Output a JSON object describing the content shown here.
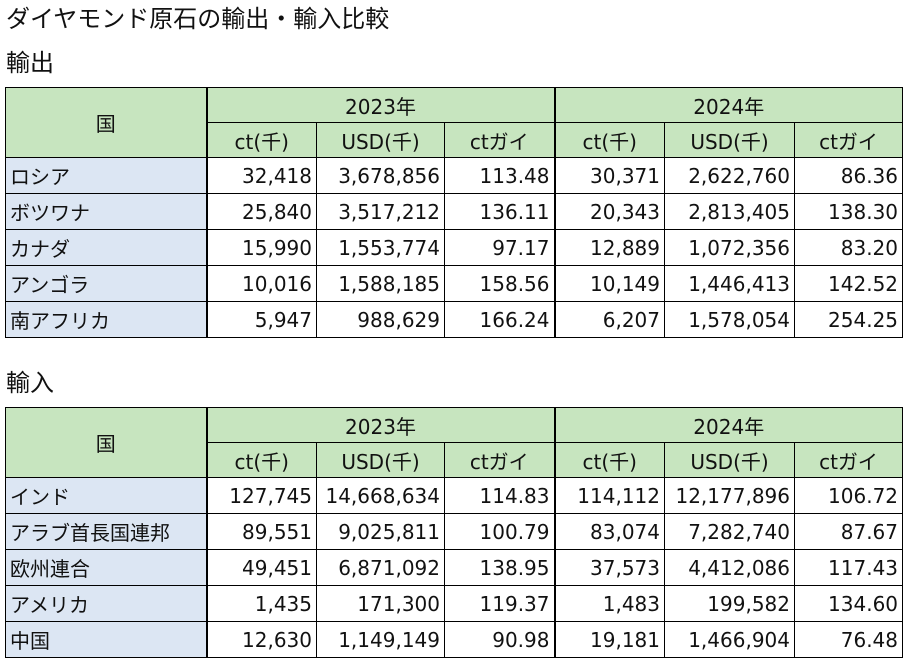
{
  "title": "ダイヤモンド原石の輸出・輸入比較",
  "header": {
    "country_label": "国",
    "years": [
      "2023年",
      "2024年"
    ],
    "columns": [
      "ct(千)",
      "USD(千)",
      "ctガイ"
    ]
  },
  "exports": {
    "label": "輸出",
    "rows": [
      {
        "country": "ロシア",
        "ct_2023": "32,418",
        "usd_2023": "3,678,856",
        "ctg_2023": "113.48",
        "ct_2024": "30,371",
        "usd_2024": "2,622,760",
        "ctg_2024": "86.36"
      },
      {
        "country": "ボツワナ",
        "ct_2023": "25,840",
        "usd_2023": "3,517,212",
        "ctg_2023": "136.11",
        "ct_2024": "20,343",
        "usd_2024": "2,813,405",
        "ctg_2024": "138.30"
      },
      {
        "country": "カナダ",
        "ct_2023": "15,990",
        "usd_2023": "1,553,774",
        "ctg_2023": "97.17",
        "ct_2024": "12,889",
        "usd_2024": "1,072,356",
        "ctg_2024": "83.20"
      },
      {
        "country": "アンゴラ",
        "ct_2023": "10,016",
        "usd_2023": "1,588,185",
        "ctg_2023": "158.56",
        "ct_2024": "10,149",
        "usd_2024": "1,446,413",
        "ctg_2024": "142.52"
      },
      {
        "country": "南アフリカ",
        "ct_2023": "5,947",
        "usd_2023": "988,629",
        "ctg_2023": "166.24",
        "ct_2024": "6,207",
        "usd_2024": "1,578,054",
        "ctg_2024": "254.25"
      }
    ]
  },
  "imports": {
    "label": "輸入",
    "rows": [
      {
        "country": "インド",
        "ct_2023": "127,745",
        "usd_2023": "14,668,634",
        "ctg_2023": "114.83",
        "ct_2024": "114,112",
        "usd_2024": "12,177,896",
        "ctg_2024": "106.72"
      },
      {
        "country": "アラブ首長国連邦",
        "ct_2023": "89,551",
        "usd_2023": "9,025,811",
        "ctg_2023": "100.79",
        "ct_2024": "83,074",
        "usd_2024": "7,282,740",
        "ctg_2024": "87.67"
      },
      {
        "country": "欧州連合",
        "ct_2023": "49,451",
        "usd_2023": "6,871,092",
        "ctg_2023": "138.95",
        "ct_2024": "37,573",
        "usd_2024": "4,412,086",
        "ctg_2024": "117.43"
      },
      {
        "country": "アメリカ",
        "ct_2023": "1,435",
        "usd_2023": "171,300",
        "ctg_2023": "119.37",
        "ct_2024": "1,483",
        "usd_2024": "199,582",
        "ctg_2024": "134.60"
      },
      {
        "country": "中国",
        "ct_2023": "12,630",
        "usd_2023": "1,149,149",
        "ctg_2023": "90.98",
        "ct_2024": "19,181",
        "usd_2024": "1,466,904",
        "ctg_2024": "76.48"
      }
    ]
  }
}
